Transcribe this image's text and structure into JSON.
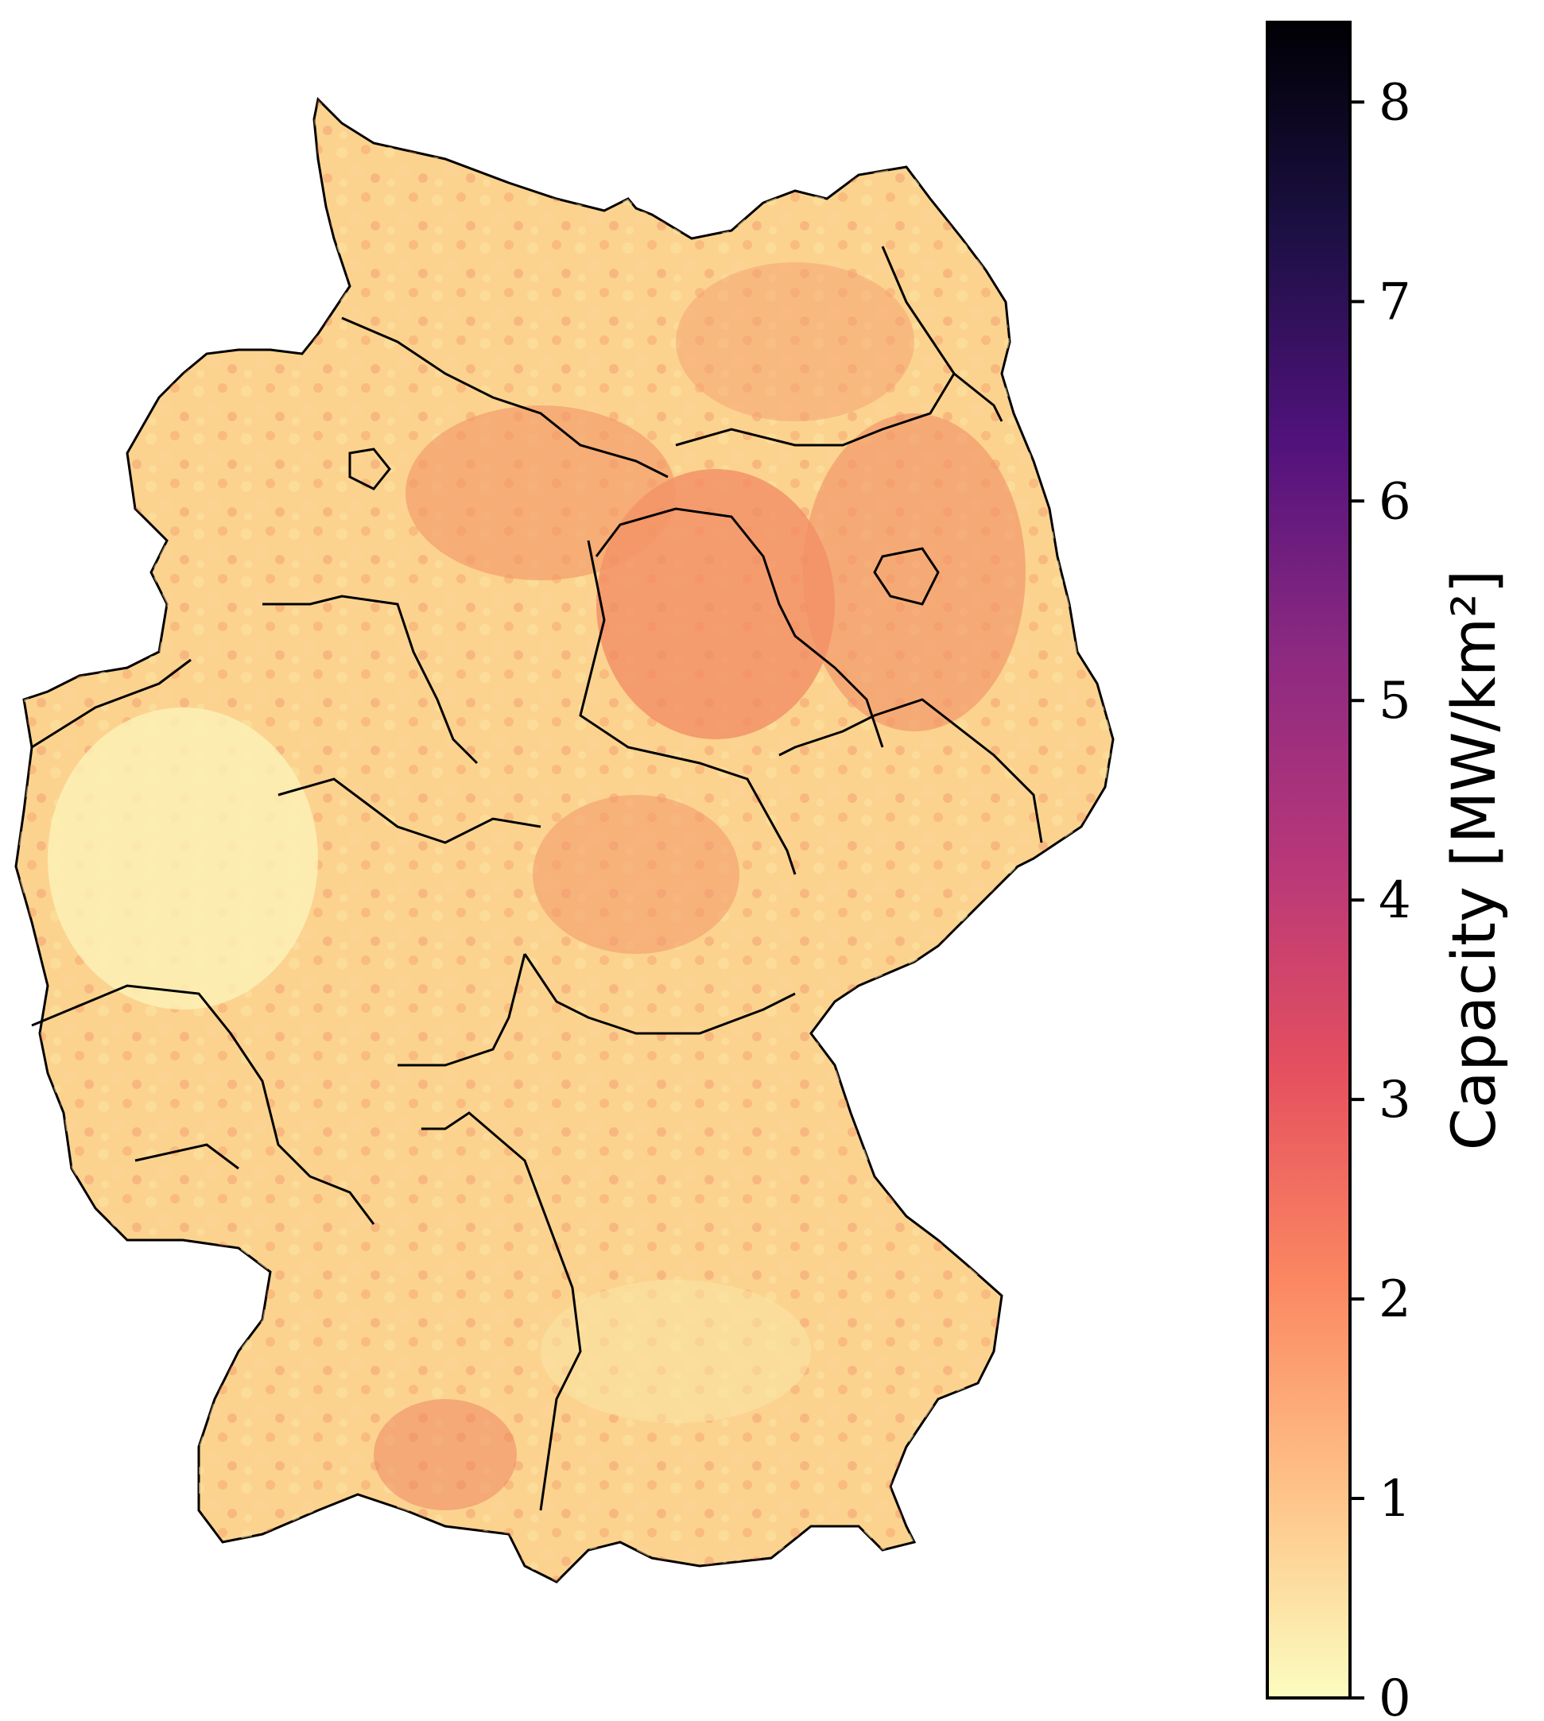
{
  "figure": {
    "colormap": "magma_r",
    "colormap_stops": [
      "#fcfdbf",
      "#fec287",
      "#fb8761",
      "#e5505f",
      "#b73779",
      "#8c2981",
      "#51127c",
      "#1c1044",
      "#000004"
    ],
    "region_border_color": "#000000"
  },
  "colorbar": {
    "label": "Capacity [MW/km²]",
    "min": 0,
    "max": 8.4,
    "ticks": [
      {
        "value": 0,
        "label": "0"
      },
      {
        "value": 1,
        "label": "1"
      },
      {
        "value": 2,
        "label": "2"
      },
      {
        "value": 3,
        "label": "3"
      },
      {
        "value": 4,
        "label": "4"
      },
      {
        "value": 5,
        "label": "5"
      },
      {
        "value": 6,
        "label": "6"
      },
      {
        "value": 7,
        "label": "7"
      },
      {
        "value": 8,
        "label": "8"
      }
    ]
  }
}
